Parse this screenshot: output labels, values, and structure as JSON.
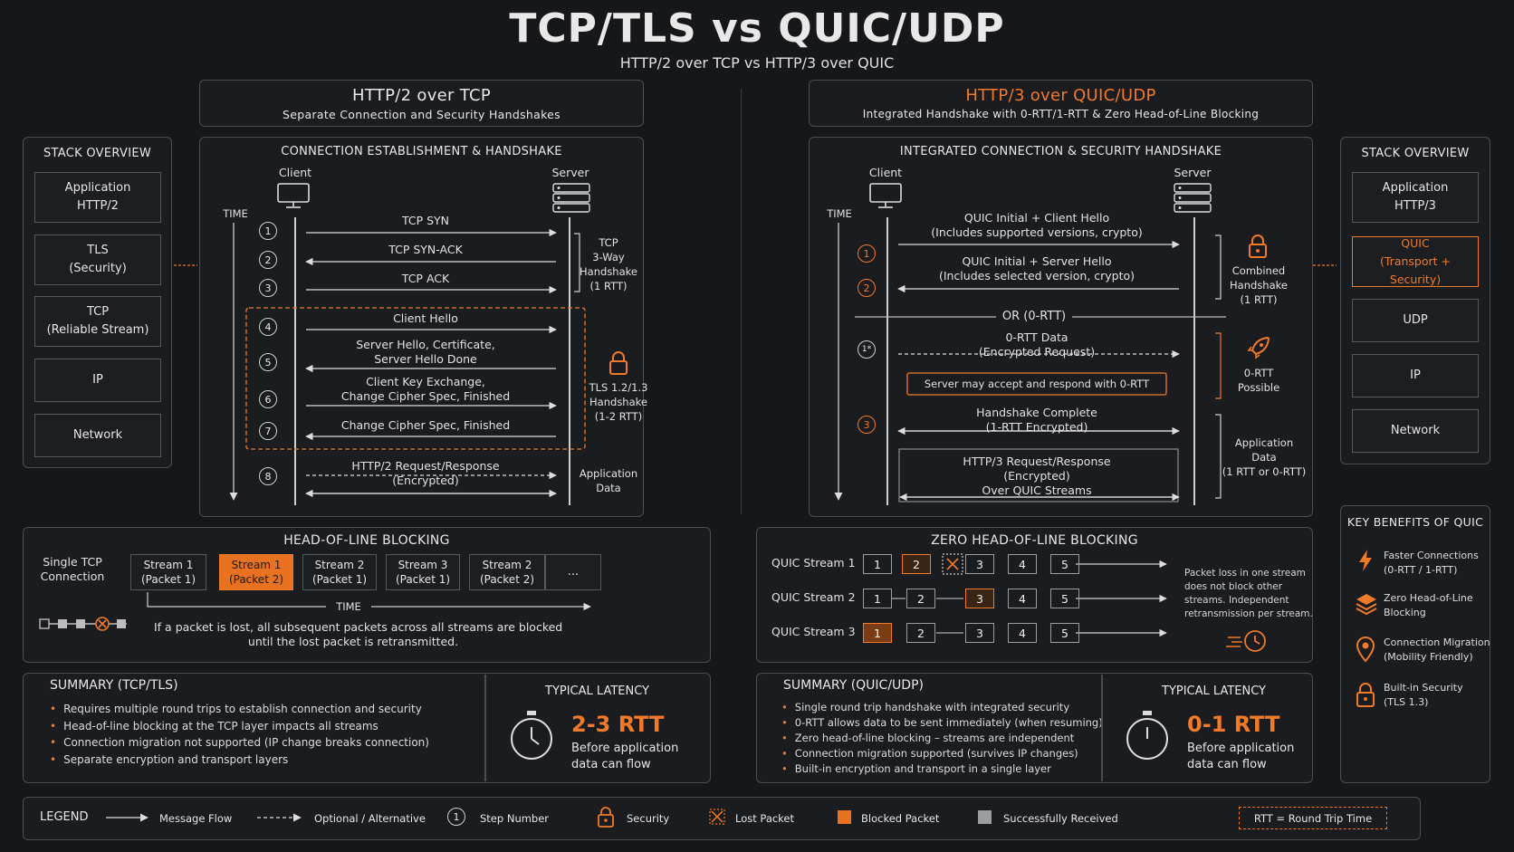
{
  "title": "TCP/TLS vs QUIC/UDP",
  "subtitle": "HTTP/2 over TCP vs HTTP/3 over QUIC",
  "left": {
    "header_title": "HTTP/2 over TCP",
    "header_sub": "Separate Connection and Security Handshakes",
    "stack_title": "STACK OVERVIEW",
    "stack": [
      {
        "l1": "Application",
        "l2": "HTTP/2"
      },
      {
        "l1": "TLS",
        "l2": "(Security)"
      },
      {
        "l1": "TCP",
        "l2": "(Reliable Stream)"
      },
      {
        "l1": "IP",
        "l2": ""
      },
      {
        "l1": "Network",
        "l2": ""
      }
    ],
    "hs_title": "CONNECTION ESTABLISHMENT & HANDSHAKE",
    "client": "Client",
    "server": "Server",
    "time": "TIME",
    "steps": [
      "1",
      "2",
      "3",
      "4",
      "5",
      "6",
      "7",
      "8"
    ],
    "msgs": [
      {
        "l1": "TCP SYN",
        "l2": ""
      },
      {
        "l1": "TCP SYN-ACK",
        "l2": ""
      },
      {
        "l1": "TCP ACK",
        "l2": ""
      },
      {
        "l1": "Client Hello",
        "l2": ""
      },
      {
        "l1": "Server Hello, Certificate,",
        "l2": "Server Hello Done"
      },
      {
        "l1": "Client Key Exchange,",
        "l2": "Change Cipher Spec, Finished"
      },
      {
        "l1": "Change Cipher Spec, Finished",
        "l2": ""
      },
      {
        "l1": "HTTP/2 Request/Response",
        "l2": "(Encrypted)"
      }
    ],
    "tcp_note": [
      "TCP",
      "3-Way",
      "Handshake",
      "(1 RTT)"
    ],
    "tls_note": [
      "TLS 1.2/1.3",
      "Handshake",
      "(1-2 RTT)"
    ],
    "app_note": [
      "Application",
      "Data"
    ],
    "hol_title": "HEAD-OF-LINE BLOCKING",
    "hol_label": [
      "Single TCP",
      "Connection"
    ],
    "hol_cells": [
      {
        "l1": "Stream 1",
        "l2": "(Packet 1)"
      },
      {
        "l1": "Stream 1",
        "l2": "(Packet 2)"
      },
      {
        "l1": "Stream 2",
        "l2": "(Packet 1)"
      },
      {
        "l1": "Stream 3",
        "l2": "(Packet 1)"
      },
      {
        "l1": "Stream 2",
        "l2": "(Packet 2)"
      },
      {
        "l1": "...",
        "l2": ""
      }
    ],
    "hol_time": "TIME",
    "hol_note": [
      "If a packet is lost, all subsequent packets across all streams are blocked",
      "until the lost packet is retransmitted."
    ],
    "sum_title": "SUMMARY (TCP/TLS)",
    "sum": [
      "Requires multiple round trips to establish connection and security",
      "Head-of-line blocking at the TCP layer impacts all streams",
      "Connection migration not supported (IP change breaks connection)",
      "Separate encryption and transport layers"
    ],
    "lat_title": "TYPICAL LATENCY",
    "lat_value": "2-3 RTT",
    "lat_note": [
      "Before application",
      "data can flow"
    ]
  },
  "right": {
    "header_title": "HTTP/3 over QUIC/UDP",
    "header_sub": "Integrated Handshake with 0-RTT/1-RTT & Zero Head-of-Line Blocking",
    "stack_title": "STACK OVERVIEW",
    "stack": [
      {
        "l1": "Application",
        "l2": "HTTP/3"
      },
      {
        "l1": "QUIC",
        "l2": "(Transport + Security)"
      },
      {
        "l1": "UDP",
        "l2": ""
      },
      {
        "l1": "IP",
        "l2": ""
      },
      {
        "l1": "Network",
        "l2": ""
      }
    ],
    "hs_title": "INTEGRATED CONNECTION & SECURITY HANDSHAKE",
    "client": "Client",
    "server": "Server",
    "time": "TIME",
    "steps": [
      "1",
      "2",
      "1*",
      "3"
    ],
    "msgs": [
      {
        "l1": "QUIC Initial + Client Hello",
        "l2": "(Includes supported versions, crypto)"
      },
      {
        "l1": "QUIC Initial + Server Hello",
        "l2": "(Includes selected version, crypto)"
      },
      {
        "l1": "0-RTT Data",
        "l2": "(Encrypted Request)"
      },
      {
        "l1": "Handshake Complete",
        "l2": "(1-RTT Encrypted)"
      }
    ],
    "or_label": "OR (0-RTT)",
    "zero_rtt_banner": "Server may accept and respond with 0-RTT",
    "req": [
      "HTTP/3 Request/Response",
      "(Encrypted)",
      "Over QUIC Streams"
    ],
    "combined_note": [
      "Combined",
      "Handshake",
      "(1 RTT)"
    ],
    "zero_note": [
      "0-RTT",
      "Possible"
    ],
    "app_note": [
      "Application",
      "Data",
      "(1 RTT or 0-RTT)"
    ],
    "zhol_title": "ZERO HEAD-OF-LINE BLOCKING",
    "streams": [
      "QUIC Stream 1",
      "QUIC Stream 2",
      "QUIC Stream 3"
    ],
    "packets": [
      "1",
      "2",
      "3",
      "4",
      "5"
    ],
    "zhol_note": [
      "Packet loss in one stream",
      "does not block other",
      "streams. Independent",
      "retransmission per stream."
    ],
    "sum_title": "SUMMARY (QUIC/UDP)",
    "sum": [
      "Single round trip handshake with integrated security",
      "0-RTT allows data to be sent immediately (when resuming)",
      "Zero head-of-line blocking – streams are independent",
      "Connection migration supported (survives IP changes)",
      "Built-in encryption and transport in a single layer"
    ],
    "lat_title": "TYPICAL LATENCY",
    "lat_value": "0-1 RTT",
    "lat_note": [
      "Before application",
      "data can flow"
    ],
    "benefits_title": "KEY BENEFITS OF QUIC",
    "benefits": [
      {
        "l1": "Faster Connections",
        "l2": "(0-RTT / 1-RTT)",
        "icon": "lightning-icon"
      },
      {
        "l1": "Zero Head-of-Line",
        "l2": "Blocking",
        "icon": "layers-icon"
      },
      {
        "l1": "Connection Migration",
        "l2": "(Mobility Friendly)",
        "icon": "location-pin-icon"
      },
      {
        "l1": "Built-in Security",
        "l2": "(TLS 1.3)",
        "icon": "lock-icon"
      }
    ]
  },
  "legend": {
    "title": "LEGEND",
    "items": [
      "Message Flow",
      "Optional / Alternative",
      "Step Number",
      "Security",
      "Lost Packet",
      "Blocked Packet",
      "Successfully Received"
    ],
    "step_sample": "1",
    "rtt": "RTT = Round Trip Time"
  },
  "colors": {
    "accent": "#f07a28",
    "bg": "#15171a",
    "panel": "#1a1c1f",
    "border": "#4a4d52"
  }
}
